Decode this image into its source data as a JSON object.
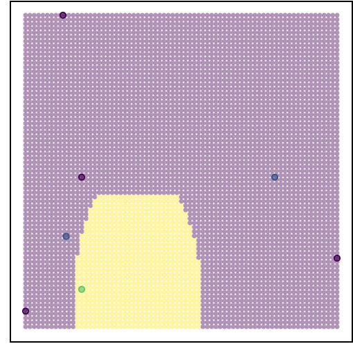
{
  "chart_data": {
    "type": "scatter",
    "title": "",
    "xlabel": "",
    "ylabel": "",
    "xlim": [
      0,
      1
    ],
    "ylim": [
      0,
      1
    ],
    "grid": false,
    "legend": "none",
    "colormap": "viridis",
    "colors": {
      "class_0": "#440154",
      "class_1": "#fde725",
      "class_mid_blue": "#3b528b",
      "class_mid_green": "#5ec962"
    },
    "decision_surface": {
      "grid_size": 73,
      "background_class": 0,
      "region_class": 1,
      "region": {
        "type": "ellipse",
        "center": [
          0.36,
          0.08
        ],
        "rx": 0.205,
        "ry": 0.44,
        "ymax_cut": 0.43
      }
    },
    "series": [
      {
        "points": [
          {
            "x": 0.12,
            "y": 1.0,
            "class": 0
          },
          {
            "x": 0.18,
            "y": 0.48,
            "class": 0
          },
          {
            "x": 0.13,
            "y": 0.29,
            "class": "mid_blue"
          },
          {
            "x": 0.8,
            "y": 0.48,
            "class": "mid_blue"
          },
          {
            "x": 1.0,
            "y": 0.22,
            "class": 0
          },
          {
            "x": 0.0,
            "y": 0.05,
            "class": 0
          },
          {
            "x": 0.18,
            "y": 0.12,
            "class": "mid_green"
          }
        ]
      }
    ]
  }
}
